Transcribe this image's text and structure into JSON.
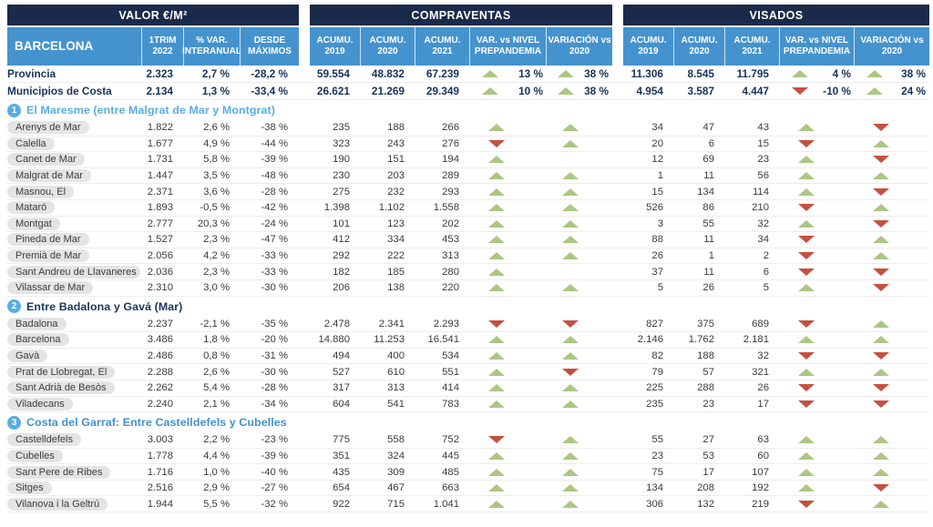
{
  "header": {
    "corner": "BARCELONA",
    "groups": [
      {
        "title": "VALOR €/M²",
        "sub": [
          "1TRIM\n2022",
          "% VAR.\nINTERANUAL",
          "DESDE\nMÁXIMOS"
        ]
      },
      {
        "title": "COMPRAVENTAS",
        "sub": [
          "ACUMU.\n2019",
          "ACUMU.\n2020",
          "ACUMU.\n2021",
          "VAR. vs NIVEL\nPREPANDEMIA",
          "VARIACIÓN vs\n2020"
        ]
      },
      {
        "title": "VISADOS",
        "sub": [
          "ACUMU.\n2019",
          "ACUMU.\n2020",
          "ACUMU.\n2021",
          "VAR. vs NIVEL\nPREPANDEMIA",
          "VARIACIÓN vs\n2020"
        ]
      }
    ]
  },
  "colors": {
    "header_navy": "#1B2A4A",
    "header_blue": "#4593CE",
    "badge_blue": "#58ADE2",
    "trend_up_green": "#ABC783",
    "trend_down_red": "#C6503F",
    "pill_gray": "#E4E4E4",
    "summary_navy": "#16335B"
  },
  "summary_rows": [
    {
      "name": "Provincia",
      "v": [
        "2.323",
        "2,7 %",
        "-28,2 %"
      ],
      "c": [
        "59.554",
        "48.832",
        "67.239"
      ],
      "ct": [
        {
          "dir": "up",
          "label": "13 %"
        },
        {
          "dir": "up",
          "label": "38 %"
        }
      ],
      "vi": [
        "11.306",
        "8.545",
        "11.795"
      ],
      "vt": [
        {
          "dir": "up",
          "label": "4 %"
        },
        {
          "dir": "up",
          "label": "38 %"
        }
      ]
    },
    {
      "name": "Municipios de Costa",
      "v": [
        "2.134",
        "1,3 %",
        "-33,4 %"
      ],
      "c": [
        "26.621",
        "21.269",
        "29.349"
      ],
      "ct": [
        {
          "dir": "up",
          "label": "10 %"
        },
        {
          "dir": "up",
          "label": "38 %"
        }
      ],
      "vi": [
        "4.954",
        "3.587",
        "4.447"
      ],
      "vt": [
        {
          "dir": "down",
          "label": "-10 %"
        },
        {
          "dir": "up",
          "label": "24 %"
        }
      ]
    }
  ],
  "sections": [
    {
      "num": "1",
      "title": "El Maresme (entre Malgrat de Mar y Montgrat)",
      "title_color": "#58ADE2",
      "rows": [
        {
          "name": "Arenys de Mar",
          "v": [
            "1.822",
            "2,6 %",
            "-38 %"
          ],
          "c": [
            "235",
            "188",
            "266"
          ],
          "ct": [
            "up",
            "up"
          ],
          "vi": [
            "34",
            "47",
            "43"
          ],
          "vt": [
            "up",
            "down"
          ]
        },
        {
          "name": "Calella",
          "v": [
            "1.677",
            "4,9 %",
            "-44 %"
          ],
          "c": [
            "323",
            "243",
            "276"
          ],
          "ct": [
            "down",
            "up"
          ],
          "vi": [
            "20",
            "6",
            "15"
          ],
          "vt": [
            "down",
            "up"
          ]
        },
        {
          "name": "Canet de Mar",
          "v": [
            "1.731",
            "5,8 %",
            "-39 %"
          ],
          "c": [
            "190",
            "151",
            "194"
          ],
          "ct": [
            "up",
            ""
          ],
          "vi": [
            "12",
            "69",
            "23"
          ],
          "vt": [
            "up",
            "down"
          ]
        },
        {
          "name": "Malgrat de Mar",
          "v": [
            "1.447",
            "3,5 %",
            "-48 %"
          ],
          "c": [
            "230",
            "203",
            "289"
          ],
          "ct": [
            "up",
            "up"
          ],
          "vi": [
            "1",
            "11",
            "56"
          ],
          "vt": [
            "up",
            "up"
          ]
        },
        {
          "name": "Masnou, El",
          "v": [
            "2.371",
            "3,6 %",
            "-28 %"
          ],
          "c": [
            "275",
            "232",
            "293"
          ],
          "ct": [
            "up",
            "up"
          ],
          "vi": [
            "15",
            "134",
            "114"
          ],
          "vt": [
            "up",
            "down"
          ]
        },
        {
          "name": "Mataró",
          "v": [
            "1.893",
            "-0,5 %",
            "-42 %"
          ],
          "c": [
            "1.398",
            "1.102",
            "1.558"
          ],
          "ct": [
            "up",
            "up"
          ],
          "vi": [
            "526",
            "86",
            "210"
          ],
          "vt": [
            "down",
            "up"
          ]
        },
        {
          "name": "Montgat",
          "v": [
            "2.777",
            "20,3 %",
            "-24 %"
          ],
          "c": [
            "101",
            "123",
            "202"
          ],
          "ct": [
            "up",
            "up"
          ],
          "vi": [
            "3",
            "55",
            "32"
          ],
          "vt": [
            "up",
            "down"
          ]
        },
        {
          "name": "Pineda de Mar",
          "v": [
            "1.527",
            "2,3 %",
            "-47 %"
          ],
          "c": [
            "412",
            "334",
            "453"
          ],
          "ct": [
            "up",
            "up"
          ],
          "vi": [
            "88",
            "11",
            "34"
          ],
          "vt": [
            "down",
            "up"
          ]
        },
        {
          "name": "Premià de Mar",
          "v": [
            "2.056",
            "4,2 %",
            "-33 %"
          ],
          "c": [
            "292",
            "222",
            "313"
          ],
          "ct": [
            "up",
            "up"
          ],
          "vi": [
            "26",
            "1",
            "2"
          ],
          "vt": [
            "down",
            "up"
          ]
        },
        {
          "name": "Sant Andreu de Llavaneres",
          "v": [
            "2.036",
            "2,3 %",
            "-33 %"
          ],
          "c": [
            "182",
            "185",
            "280"
          ],
          "ct": [
            "up",
            ""
          ],
          "vi": [
            "37",
            "11",
            "6"
          ],
          "vt": [
            "down",
            "down"
          ]
        },
        {
          "name": "Vilassar de Mar",
          "v": [
            "2.310",
            "3,0 %",
            "-30 %"
          ],
          "c": [
            "206",
            "138",
            "220"
          ],
          "ct": [
            "up",
            "up"
          ],
          "vi": [
            "5",
            "26",
            "5"
          ],
          "vt": [
            "up",
            "down"
          ]
        }
      ]
    },
    {
      "num": "2",
      "title": "Entre Badalona y Gavá (Mar)",
      "title_color": "#17365E",
      "rows": [
        {
          "name": "Badalona",
          "v": [
            "2.237",
            "-2,1 %",
            "-35 %"
          ],
          "c": [
            "2.478",
            "2.341",
            "2.293"
          ],
          "ct": [
            "down",
            "down"
          ],
          "vi": [
            "827",
            "375",
            "689"
          ],
          "vt": [
            "down",
            "up"
          ]
        },
        {
          "name": "Barcelona",
          "v": [
            "3.486",
            "1,8 %",
            "-20 %"
          ],
          "c": [
            "14.880",
            "11.253",
            "16.541"
          ],
          "ct": [
            "up",
            "up"
          ],
          "vi": [
            "2.146",
            "1.762",
            "2.181"
          ],
          "vt": [
            "up",
            "up"
          ]
        },
        {
          "name": "Gavà",
          "v": [
            "2.486",
            "0,8 %",
            "-31 %"
          ],
          "c": [
            "494",
            "400",
            "534"
          ],
          "ct": [
            "up",
            "up"
          ],
          "vi": [
            "82",
            "188",
            "32"
          ],
          "vt": [
            "down",
            "down"
          ]
        },
        {
          "name": "Prat de Llobregat, El",
          "v": [
            "2.288",
            "2,6 %",
            "-30 %"
          ],
          "c": [
            "527",
            "610",
            "551"
          ],
          "ct": [
            "up",
            "down"
          ],
          "vi": [
            "79",
            "57",
            "321"
          ],
          "vt": [
            "up",
            "up"
          ]
        },
        {
          "name": "Sant Adrià de Besòs",
          "v": [
            "2.262",
            "5,4 %",
            "-28 %"
          ],
          "c": [
            "317",
            "313",
            "414"
          ],
          "ct": [
            "up",
            "up"
          ],
          "vi": [
            "225",
            "288",
            "26"
          ],
          "vt": [
            "down",
            "down"
          ]
        },
        {
          "name": "Viladecans",
          "v": [
            "2.240",
            "2,1 %",
            "-34 %"
          ],
          "c": [
            "604",
            "541",
            "783"
          ],
          "ct": [
            "up",
            "up"
          ],
          "vi": [
            "235",
            "23",
            "17"
          ],
          "vt": [
            "down",
            "down"
          ]
        }
      ]
    },
    {
      "num": "3",
      "title": "Costa del Garraf: Entre Castelldefels y Cubelles",
      "title_color": "#4191CE",
      "rows": [
        {
          "name": "Castelldefels",
          "v": [
            "3.003",
            "2,2 %",
            "-23 %"
          ],
          "c": [
            "775",
            "558",
            "752"
          ],
          "ct": [
            "down",
            "up"
          ],
          "vi": [
            "55",
            "27",
            "63"
          ],
          "vt": [
            "up",
            "up"
          ]
        },
        {
          "name": "Cubelles",
          "v": [
            "1.778",
            "4,4 %",
            "-39 %"
          ],
          "c": [
            "351",
            "324",
            "445"
          ],
          "ct": [
            "up",
            "up"
          ],
          "vi": [
            "23",
            "53",
            "60"
          ],
          "vt": [
            "up",
            "up"
          ]
        },
        {
          "name": "Sant Pere de Ribes",
          "v": [
            "1.716",
            "1,0 %",
            "-40 %"
          ],
          "c": [
            "435",
            "309",
            "485"
          ],
          "ct": [
            "up",
            "up"
          ],
          "vi": [
            "75",
            "17",
            "107"
          ],
          "vt": [
            "up",
            "up"
          ]
        },
        {
          "name": "Sitges",
          "v": [
            "2.516",
            "2,9 %",
            "-27 %"
          ],
          "c": [
            "654",
            "467",
            "663"
          ],
          "ct": [
            "up",
            "up"
          ],
          "vi": [
            "134",
            "208",
            "192"
          ],
          "vt": [
            "up",
            "down"
          ]
        },
        {
          "name": "Vilanova i la Geltrú",
          "v": [
            "1.944",
            "5,5 %",
            "-32 %"
          ],
          "c": [
            "922",
            "715",
            "1.041"
          ],
          "ct": [
            "up",
            "up"
          ],
          "vi": [
            "306",
            "132",
            "219"
          ],
          "vt": [
            "down",
            "up"
          ]
        }
      ]
    }
  ]
}
